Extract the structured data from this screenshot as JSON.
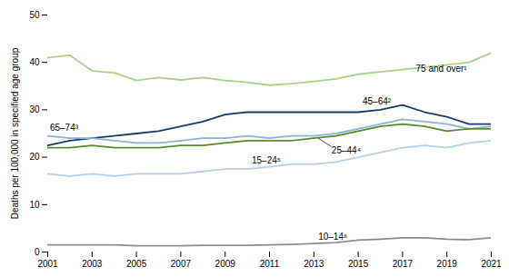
{
  "chart_data": {
    "type": "line",
    "x": [
      2001,
      2002,
      2003,
      2004,
      2005,
      2006,
      2007,
      2008,
      2009,
      2010,
      2011,
      2012,
      2013,
      2014,
      2015,
      2016,
      2017,
      2018,
      2019,
      2020,
      2021
    ],
    "series": [
      {
        "name": "75 and over¹",
        "color": "#aad08a",
        "values": [
          41.0,
          41.5,
          38.2,
          37.8,
          36.2,
          36.8,
          36.3,
          36.8,
          36.2,
          35.8,
          35.2,
          35.5,
          36.0,
          36.5,
          37.5,
          38.0,
          38.5,
          39.0,
          39.5,
          40.0,
          42.0
        ]
      },
      {
        "name": "45–64²",
        "color": "#1b3a6b",
        "values": [
          22.5,
          23.5,
          24.0,
          24.5,
          25.0,
          25.5,
          26.5,
          27.5,
          29.0,
          29.5,
          29.5,
          29.5,
          29.5,
          29.5,
          29.5,
          30.0,
          31.0,
          29.5,
          28.5,
          27.0,
          27.0
        ]
      },
      {
        "name": "65–74³",
        "color": "#8ab4d8",
        "values": [
          24.5,
          24.0,
          24.0,
          23.5,
          23.0,
          23.0,
          23.5,
          24.0,
          24.0,
          24.5,
          24.0,
          24.5,
          24.5,
          25.0,
          26.0,
          27.0,
          28.0,
          27.5,
          27.0,
          26.0,
          26.5
        ]
      },
      {
        "name": "25–44⁴",
        "color": "#5a8a2a",
        "values": [
          22.0,
          22.0,
          22.5,
          22.0,
          22.0,
          22.0,
          22.5,
          22.5,
          23.0,
          23.5,
          23.5,
          23.5,
          24.0,
          24.5,
          25.5,
          26.5,
          27.0,
          26.5,
          25.5,
          26.0,
          26.0
        ]
      },
      {
        "name": "15–24⁵",
        "color": "#b8cfe8",
        "values": [
          16.5,
          16.0,
          16.5,
          16.0,
          16.5,
          16.5,
          16.5,
          17.0,
          17.5,
          17.5,
          18.0,
          18.5,
          18.5,
          19.0,
          20.0,
          21.0,
          22.0,
          22.5,
          22.0,
          23.0,
          23.5
        ]
      },
      {
        "name": "10–14⁶",
        "color": "#8c8c8c",
        "values": [
          1.5,
          1.5,
          1.5,
          1.5,
          1.3,
          1.3,
          1.3,
          1.4,
          1.4,
          1.4,
          1.5,
          1.6,
          1.8,
          2.0,
          2.5,
          2.7,
          3.0,
          3.0,
          2.7,
          2.6,
          3.0
        ]
      }
    ],
    "annotations": [
      {
        "text": "75 and over¹",
        "x": 2017.6,
        "y": 38.0
      },
      {
        "text": "45–64²",
        "x": 2015.2,
        "y": 31.2
      },
      {
        "text": "65–74³",
        "x": 2001.1,
        "y": 25.5
      },
      {
        "text": "25–44⁴",
        "x": 2013.8,
        "y": 22.2,
        "xy": [
          2013.2,
          24.0
        ]
      },
      {
        "text": "15–24⁵",
        "x": 2010.2,
        "y": 18.6
      },
      {
        "text": "10–14⁶",
        "x": 2013.2,
        "y": 2.5
      }
    ],
    "ylabel": "Deaths per 100,000 in specified age group",
    "xlim": [
      2001,
      2021
    ],
    "xticks": [
      2001,
      2003,
      2005,
      2007,
      2009,
      2011,
      2013,
      2015,
      2017,
      2019,
      2021
    ],
    "ylim": [
      0,
      50
    ],
    "yticks": [
      0,
      10,
      20,
      30,
      40,
      50
    ],
    "grid": false
  }
}
